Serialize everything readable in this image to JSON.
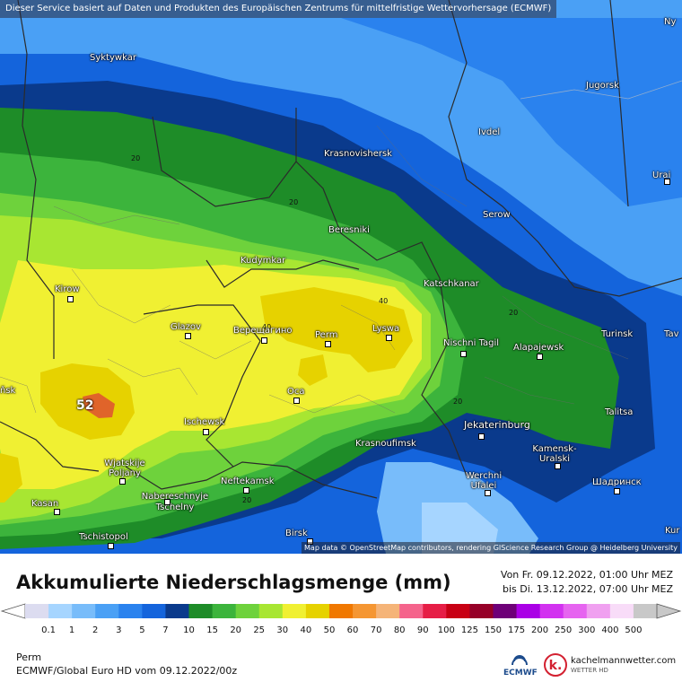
{
  "banner": "Dieser Service basiert auf Daten und Produkten des Europäischen Zentrums für mittelfristige Wettervorhersage (ECMWF)",
  "attribution": "Map data © OpenStreetMap contributors, rendering GIScience Research Group @ Heidelberg University",
  "title": "Akkumulierte Niederschlagsmenge (mm)",
  "period": {
    "from": "Von Fr. 09.12.2022, 01:00 Uhr MEZ",
    "to": "bis Di. 13.12.2022, 07:00 Uhr MEZ"
  },
  "location": "Perm",
  "model_run": "ECMWF/Global Euro HD vom  09.12.2022/00z",
  "logos": {
    "ecmwf": "ECMWF",
    "kachelmann": "kachelmannwetter.com",
    "kachelmann_sub": "WETTER HD"
  },
  "max_value": "52",
  "contour_labels": [
    "20",
    "20",
    "40",
    "40",
    "20",
    "20",
    "20"
  ],
  "cities": [
    {
      "name": "Syktywkar"
    },
    {
      "name": "Jugorsk"
    },
    {
      "name": "Ny"
    },
    {
      "name": "Ivdel"
    },
    {
      "name": "Krasnovishersk"
    },
    {
      "name": "Urai"
    },
    {
      "name": "Serow"
    },
    {
      "name": "Beresniki"
    },
    {
      "name": "Kudymkar"
    },
    {
      "name": "Kirow"
    },
    {
      "name": "Katschkanar"
    },
    {
      "name": "Glazov"
    },
    {
      "name": "Верещагино"
    },
    {
      "name": "Perm"
    },
    {
      "name": "Lyswa"
    },
    {
      "name": "Nischni Tagil"
    },
    {
      "name": "Alapajewsk"
    },
    {
      "name": "Turinsk"
    },
    {
      "name": "Tav"
    },
    {
      "name": "Ocа"
    },
    {
      "name": "ňsk"
    },
    {
      "name": "Talitsa"
    },
    {
      "name": "Ischewsk"
    },
    {
      "name": "Jekaterinburg"
    },
    {
      "name": "Krasnoufimsk"
    },
    {
      "name": "Kamensk-Uralski"
    },
    {
      "name": "Wjatskije Poljany"
    },
    {
      "name": "Werchni Ufalei"
    },
    {
      "name": "Neftekamsk"
    },
    {
      "name": "Шадринск"
    },
    {
      "name": "Naberesсhnyje Tschelny"
    },
    {
      "name": "Kasan"
    },
    {
      "name": "Birsk"
    },
    {
      "name": "Tschistopol"
    },
    {
      "name": "Kur"
    }
  ],
  "legend": {
    "colors": [
      "#dcdcf0",
      "#a6d5ff",
      "#78bcfa",
      "#4aa0f5",
      "#2a82ee",
      "#1464dc",
      "#0a3a8c",
      "#1e8c28",
      "#3cb43c",
      "#6ed23c",
      "#a8e632",
      "#f0f032",
      "#e6d200",
      "#f07800",
      "#f59632",
      "#f5b478",
      "#f5648c",
      "#e61e46",
      "#c80014",
      "#960028",
      "#6e0078",
      "#aa00e6",
      "#d232f0",
      "#e664f0",
      "#f0a0f0",
      "#f8dcf8",
      "#c8c8c8"
    ],
    "labels": [
      "0.1",
      "1",
      "2",
      "3",
      "5",
      "7",
      "10",
      "15",
      "20",
      "25",
      "30",
      "40",
      "50",
      "60",
      "70",
      "80",
      "90",
      "100",
      "125",
      "150",
      "175",
      "200",
      "250",
      "300",
      "400",
      "500"
    ]
  }
}
